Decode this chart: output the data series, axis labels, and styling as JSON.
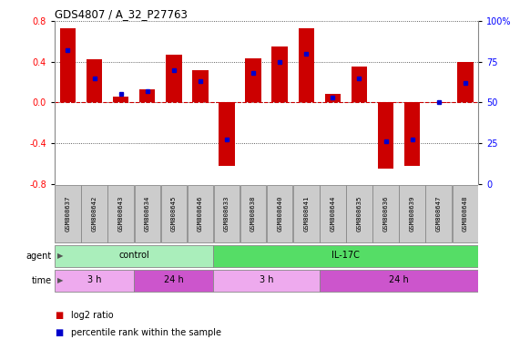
{
  "title": "GDS4807 / A_32_P27763",
  "samples": [
    "GSM808637",
    "GSM808642",
    "GSM808643",
    "GSM808634",
    "GSM808645",
    "GSM808646",
    "GSM808633",
    "GSM808638",
    "GSM808640",
    "GSM808641",
    "GSM808644",
    "GSM808635",
    "GSM808636",
    "GSM808639",
    "GSM808647",
    "GSM808648"
  ],
  "log2_ratio": [
    0.73,
    0.42,
    0.06,
    0.13,
    0.47,
    0.32,
    -0.62,
    0.43,
    0.55,
    0.73,
    0.08,
    0.35,
    -0.65,
    -0.62,
    -0.01,
    0.4
  ],
  "percentile": [
    82,
    65,
    55,
    57,
    70,
    63,
    27,
    68,
    75,
    80,
    53,
    65,
    26,
    27,
    50,
    62
  ],
  "ylim": [
    -0.8,
    0.8
  ],
  "yticks_left": [
    -0.8,
    -0.4,
    0.0,
    0.4,
    0.8
  ],
  "yticks_right": [
    0,
    25,
    50,
    75,
    100
  ],
  "bar_color": "#cc0000",
  "dot_color": "#0000cc",
  "agent_groups": [
    {
      "label": "control",
      "start": 0,
      "end": 6,
      "color": "#aaeebb"
    },
    {
      "label": "IL-17C",
      "start": 6,
      "end": 16,
      "color": "#55dd66"
    }
  ],
  "time_groups": [
    {
      "label": "3 h",
      "start": 0,
      "end": 3,
      "color": "#eeaaee"
    },
    {
      "label": "24 h",
      "start": 3,
      "end": 6,
      "color": "#cc55cc"
    },
    {
      "label": "3 h",
      "start": 6,
      "end": 10,
      "color": "#eeaaee"
    },
    {
      "label": "24 h",
      "start": 10,
      "end": 16,
      "color": "#cc55cc"
    }
  ],
  "legend_items": [
    {
      "label": "log2 ratio",
      "color": "#cc0000"
    },
    {
      "label": "percentile rank within the sample",
      "color": "#0000cc"
    }
  ],
  "hline_color": "#cc0000",
  "dotted_color": "#333333",
  "bg_color": "#ffffff",
  "plot_bg_color": "#ffffff",
  "sample_box_color": "#cccccc",
  "sample_box_edge": "#888888"
}
